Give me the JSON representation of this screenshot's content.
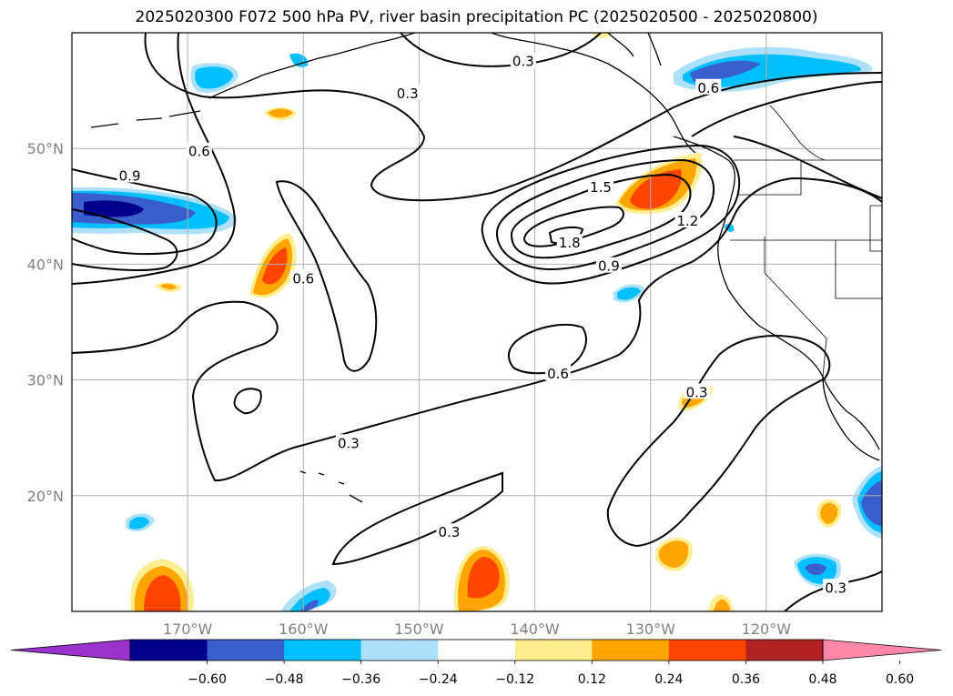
{
  "title": "2025020300 F072 500 hPa PV, river basin precipitation PC (2025020500 - 2025020800)",
  "chart_data": {
    "type": "contour",
    "projection": "lat-lon map, North Pacific and western North America",
    "x_ticks": [
      "170°W",
      "160°W",
      "150°W",
      "140°W",
      "130°W",
      "120°W"
    ],
    "y_ticks": [
      "20°N",
      "30°N",
      "40°N",
      "50°N"
    ],
    "xlim_deg": [
      -180,
      -110
    ],
    "ylim_deg": [
      10,
      60
    ],
    "grid": true,
    "contour_field": "500 hPa PV",
    "contour_levels": [
      0.3,
      0.6,
      0.9,
      1.2,
      1.5,
      1.8
    ],
    "contour_labels": [
      {
        "text": "0.3",
        "lon": -141,
        "lat": 57.6
      },
      {
        "text": "0.3",
        "lon": -151,
        "lat": 54.8
      },
      {
        "text": "0.6",
        "lon": -169,
        "lat": 49.8
      },
      {
        "text": "0.9",
        "lon": -175,
        "lat": 47.7
      },
      {
        "text": "0.6",
        "lon": -160,
        "lat": 38.8
      },
      {
        "text": "1.5",
        "lon": -134.3,
        "lat": 46.7
      },
      {
        "text": "1.2",
        "lon": -126.8,
        "lat": 43.8
      },
      {
        "text": "1.8",
        "lon": -137,
        "lat": 41.9
      },
      {
        "text": "0.9",
        "lon": -133.6,
        "lat": 39.9
      },
      {
        "text": "0.6",
        "lon": -125,
        "lat": 55.3
      },
      {
        "text": "0.6",
        "lon": -138,
        "lat": 30.6
      },
      {
        "text": "0.3",
        "lon": -126,
        "lat": 29
      },
      {
        "text": "0.3",
        "lon": -156.1,
        "lat": 24.6
      },
      {
        "text": "0.3",
        "lon": -147.4,
        "lat": 16.9
      },
      {
        "text": "0.3",
        "lon": -114,
        "lat": 12.1
      }
    ],
    "shaded_field": "river basin precipitation PC",
    "colorbar": {
      "ticks": [
        "−0.60",
        "−0.48",
        "−0.36",
        "−0.24",
        "−0.12",
        "0.12",
        "0.24",
        "0.36",
        "0.48",
        "0.60"
      ],
      "colors": [
        "#9933CC",
        "#00008B",
        "#3A5FCD",
        "#00BFFF",
        "#ADE1FB",
        "#FFFFFF",
        "#FFEE90",
        "#FFA500",
        "#FF4500",
        "#B22222",
        "#FF88AA"
      ]
    }
  }
}
